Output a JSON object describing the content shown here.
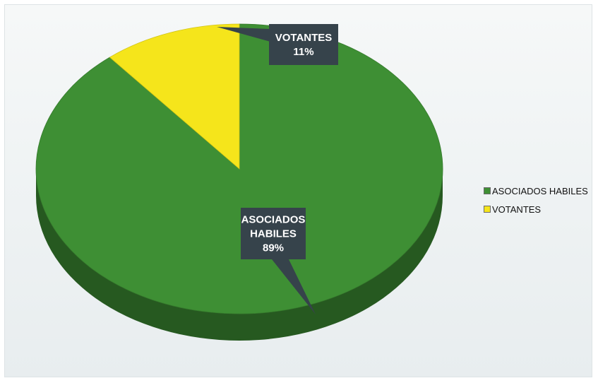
{
  "chart_data": {
    "type": "pie",
    "style": "3d",
    "categories": [
      "ASOCIADOS HABILES",
      "VOTANTES"
    ],
    "values": [
      89,
      11
    ],
    "unit": "%",
    "colors": [
      "#3e8f34",
      "#f5e51b"
    ],
    "data_labels": [
      {
        "lines": [
          "ASOCIADOS",
          "HABILES",
          "89%"
        ]
      },
      {
        "lines": [
          "VOTANTES",
          "11%"
        ]
      }
    ],
    "legend": {
      "position": "right",
      "entries": [
        "ASOCIADOS HABILES",
        "VOTANTES"
      ]
    }
  }
}
